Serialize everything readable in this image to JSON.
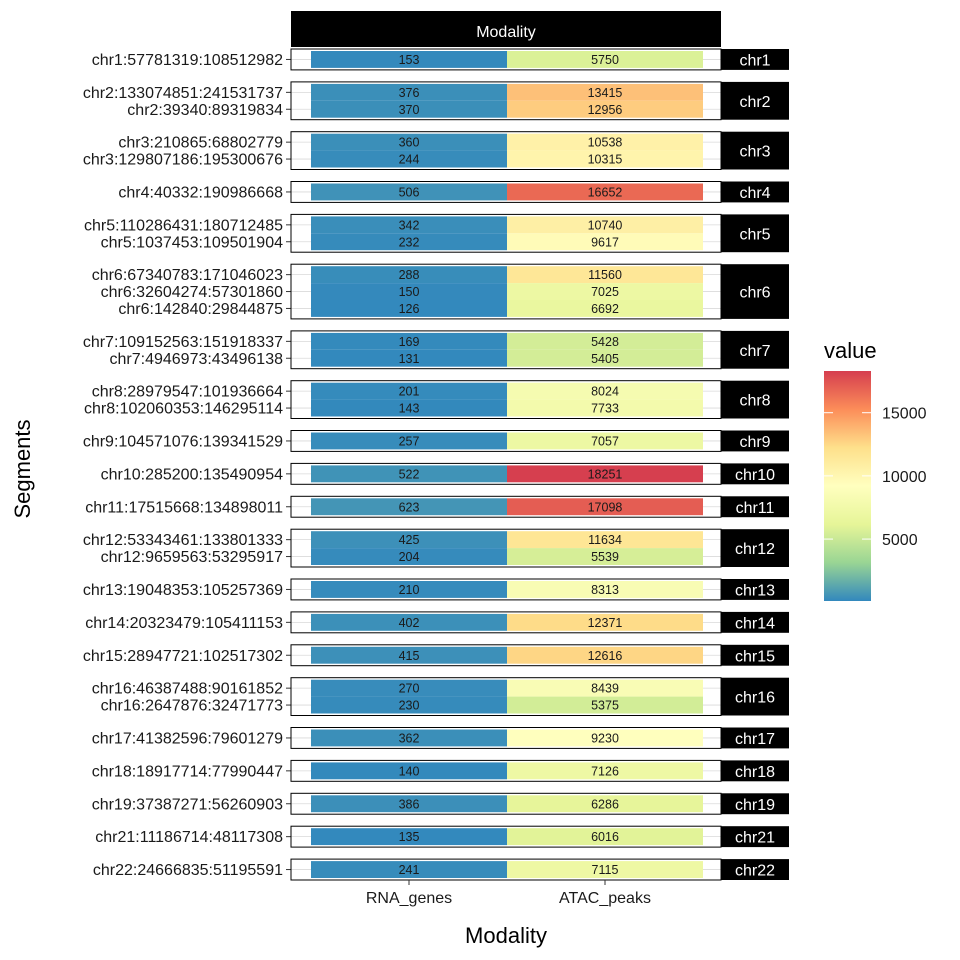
{
  "chart_data": {
    "type": "heatmap",
    "top_strip": "Modality",
    "xlabel": "Modality",
    "ylabel": "Segments",
    "x_categories": [
      "RNA_genes",
      "ATAC_peaks"
    ],
    "legend": {
      "title": "value",
      "ticks": [
        5000,
        10000,
        15000
      ],
      "range": [
        100,
        18300
      ],
      "placement": "right",
      "palette": [
        "#3288bd",
        "#99d594",
        "#e6f598",
        "#ffffbf",
        "#fee08b",
        "#fc8d59",
        "#d53e4f"
      ]
    },
    "panels": [
      {
        "strip": "chr1",
        "rows": [
          {
            "segment": "chr1:57781319:108512982",
            "values": [
              153,
              5750
            ]
          }
        ]
      },
      {
        "strip": "chr2",
        "rows": [
          {
            "segment": "chr2:133074851:241531737",
            "values": [
              376,
              13415
            ]
          },
          {
            "segment": "chr2:39340:89319834",
            "values": [
              370,
              12956
            ]
          }
        ]
      },
      {
        "strip": "chr3",
        "rows": [
          {
            "segment": "chr3:210865:68802779",
            "values": [
              360,
              10538
            ]
          },
          {
            "segment": "chr3:129807186:195300676",
            "values": [
              244,
              10315
            ]
          }
        ]
      },
      {
        "strip": "chr4",
        "rows": [
          {
            "segment": "chr4:40332:190986668",
            "values": [
              506,
              16652
            ]
          }
        ]
      },
      {
        "strip": "chr5",
        "rows": [
          {
            "segment": "chr5:110286431:180712485",
            "values": [
              342,
              10740
            ]
          },
          {
            "segment": "chr5:1037453:109501904",
            "values": [
              232,
              9617
            ]
          }
        ]
      },
      {
        "strip": "chr6",
        "rows": [
          {
            "segment": "chr6:67340783:171046023",
            "values": [
              288,
              11560
            ]
          },
          {
            "segment": "chr6:32604274:57301860",
            "values": [
              150,
              7025
            ]
          },
          {
            "segment": "chr6:142840:29844875",
            "values": [
              126,
              6692
            ]
          }
        ]
      },
      {
        "strip": "chr7",
        "rows": [
          {
            "segment": "chr7:109152563:151918337",
            "values": [
              169,
              5428
            ]
          },
          {
            "segment": "chr7:4946973:43496138",
            "values": [
              131,
              5405
            ]
          }
        ]
      },
      {
        "strip": "chr8",
        "rows": [
          {
            "segment": "chr8:28979547:101936664",
            "values": [
              201,
              8024
            ]
          },
          {
            "segment": "chr8:102060353:146295114",
            "values": [
              143,
              7733
            ]
          }
        ]
      },
      {
        "strip": "chr9",
        "rows": [
          {
            "segment": "chr9:104571076:139341529",
            "values": [
              257,
              7057
            ]
          }
        ]
      },
      {
        "strip": "chr10",
        "rows": [
          {
            "segment": "chr10:285200:135490954",
            "values": [
              522,
              18251
            ]
          }
        ]
      },
      {
        "strip": "chr11",
        "rows": [
          {
            "segment": "chr11:17515668:134898011",
            "values": [
              623,
              17098
            ]
          }
        ]
      },
      {
        "strip": "chr12",
        "rows": [
          {
            "segment": "chr12:53343461:133801333",
            "values": [
              425,
              11634
            ]
          },
          {
            "segment": "chr12:9659563:53295917",
            "values": [
              204,
              5539
            ]
          }
        ]
      },
      {
        "strip": "chr13",
        "rows": [
          {
            "segment": "chr13:19048353:105257369",
            "values": [
              210,
              8313
            ]
          }
        ]
      },
      {
        "strip": "chr14",
        "rows": [
          {
            "segment": "chr14:20323479:105411153",
            "values": [
              402,
              12371
            ]
          }
        ]
      },
      {
        "strip": "chr15",
        "rows": [
          {
            "segment": "chr15:28947721:102517302",
            "values": [
              415,
              12616
            ]
          }
        ]
      },
      {
        "strip": "chr16",
        "rows": [
          {
            "segment": "chr16:46387488:90161852",
            "values": [
              270,
              8439
            ]
          },
          {
            "segment": "chr16:2647876:32471773",
            "values": [
              230,
              5375
            ]
          }
        ]
      },
      {
        "strip": "chr17",
        "rows": [
          {
            "segment": "chr17:41382596:79601279",
            "values": [
              362,
              9230
            ]
          }
        ]
      },
      {
        "strip": "chr18",
        "rows": [
          {
            "segment": "chr18:18917714:77990447",
            "values": [
              140,
              7126
            ]
          }
        ]
      },
      {
        "strip": "chr19",
        "rows": [
          {
            "segment": "chr19:37387271:56260903",
            "values": [
              386,
              6286
            ]
          }
        ]
      },
      {
        "strip": "chr21",
        "rows": [
          {
            "segment": "chr21:11186714:48117308",
            "values": [
              135,
              6016
            ]
          }
        ]
      },
      {
        "strip": "chr22",
        "rows": [
          {
            "segment": "chr22:24666835:51195591",
            "values": [
              241,
              7115
            ]
          }
        ]
      }
    ]
  }
}
